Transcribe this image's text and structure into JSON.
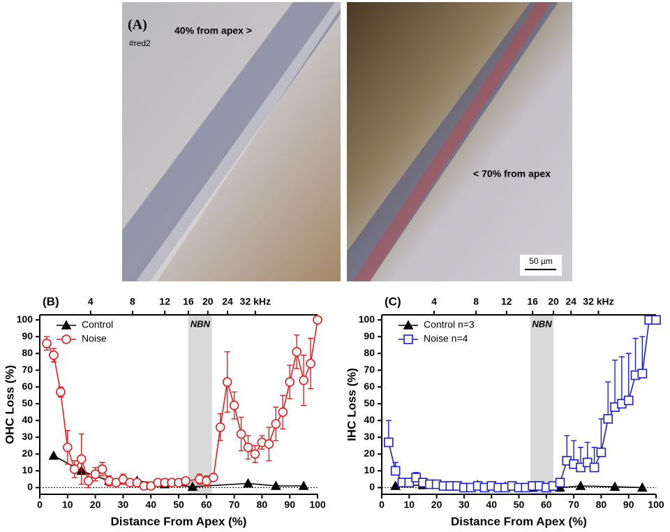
{
  "panel_a": {
    "label": "(A)",
    "annotations": [
      "40% from apex >",
      "#red2",
      "< 70% from apex"
    ],
    "scale_bar": "50 µm"
  },
  "chart_data": [
    {
      "type": "line",
      "panel_label": "(B)",
      "xlabel": "Distance From Apex (%)",
      "ylabel": "OHC Loss (%)",
      "xlim": [
        0,
        100
      ],
      "ylim": [
        -4,
        103
      ],
      "xticks": [
        0,
        10,
        20,
        30,
        40,
        50,
        60,
        70,
        80,
        90,
        100
      ],
      "yticks": [
        0,
        10,
        20,
        30,
        40,
        50,
        60,
        70,
        80,
        90,
        100
      ],
      "x2lim": [
        0,
        100
      ],
      "x2ticks": [
        {
          "value": 18.3,
          "label": "4"
        },
        {
          "value": 33.4,
          "label": "8"
        },
        {
          "value": 45,
          "label": "12"
        },
        {
          "value": 53.5,
          "label": "16"
        },
        {
          "value": 60.5,
          "label": "20"
        },
        {
          "value": 67.6,
          "label": "24"
        },
        {
          "value": 77.6,
          "label": "32 kHz"
        }
      ],
      "shaded_region": {
        "xmin": 53.5,
        "xmax": 62,
        "label": "NBN"
      },
      "reference_line": 0,
      "legend": "upper left",
      "series": [
        {
          "name": "Control",
          "color": "#000000",
          "marker": "triangle",
          "filled": true,
          "x": [
            5,
            15,
            25,
            35,
            45,
            55,
            75,
            85,
            95
          ],
          "values": [
            19,
            10,
            4,
            4,
            2,
            0.5,
            2.5,
            1,
            1
          ]
        },
        {
          "name": "Noise",
          "color": "#e8191b",
          "marker": "circle",
          "filled": false,
          "error_direction": "both",
          "x": [
            2.5,
            5,
            7.5,
            10,
            12.5,
            15,
            17.5,
            20,
            22.5,
            25,
            27.5,
            30,
            32.5,
            35,
            37.5,
            40,
            42.5,
            45,
            47.5,
            50,
            52.5,
            57.5,
            60,
            62.5,
            65,
            67.5,
            70,
            72.5,
            75,
            77.5,
            80,
            82.5,
            85,
            87.5,
            90,
            92.5,
            95,
            97.5,
            100
          ],
          "values": [
            86,
            79,
            57,
            24,
            11,
            17,
            4,
            8,
            11,
            4,
            3,
            5,
            3,
            3,
            1,
            1,
            3,
            3,
            3,
            3,
            4,
            5,
            4,
            6,
            36,
            63,
            49,
            32,
            24,
            20,
            27,
            26,
            38,
            45,
            63,
            81,
            64,
            74,
            100
          ],
          "errors": [
            4,
            4,
            3,
            10,
            5,
            15,
            4,
            4,
            4,
            3,
            2,
            3,
            2,
            2,
            1,
            1,
            1,
            1,
            1,
            1,
            1,
            3,
            3,
            2,
            8,
            18,
            8,
            10,
            7,
            5,
            4,
            10,
            10,
            10,
            10,
            10,
            15,
            15,
            0
          ]
        }
      ]
    },
    {
      "type": "line",
      "panel_label": "(C)",
      "xlabel": "Distance From Apex (%)",
      "ylabel": "IHC Loss (%)",
      "xlim": [
        0,
        100
      ],
      "ylim": [
        -4,
        103
      ],
      "xticks": [
        0,
        10,
        20,
        30,
        40,
        50,
        60,
        70,
        80,
        90,
        100
      ],
      "yticks": [
        0,
        10,
        20,
        30,
        40,
        50,
        60,
        70,
        80,
        90,
        100
      ],
      "x2lim": [
        0,
        100
      ],
      "x2ticks": [
        {
          "value": 19.1,
          "label": "4"
        },
        {
          "value": 34.4,
          "label": "8"
        },
        {
          "value": 45.5,
          "label": "12"
        },
        {
          "value": 55,
          "label": "16"
        },
        {
          "value": 62.6,
          "label": "20"
        },
        {
          "value": 69,
          "label": "24"
        },
        {
          "value": 79,
          "label": "32 kHz"
        }
      ],
      "shaded_region": {
        "xmin": 54.2,
        "xmax": 62.6,
        "label": "NBN"
      },
      "reference_line": 0,
      "legend": "upper left",
      "series": [
        {
          "name": "Control n=3",
          "color": "#000000",
          "marker": "triangle",
          "filled": true,
          "x": [
            5,
            15,
            25,
            35,
            45,
            55,
            65,
            72.5,
            85,
            95
          ],
          "values": [
            1,
            1.5,
            1,
            1.5,
            0.5,
            0,
            0,
            1,
            0.5,
            0
          ]
        },
        {
          "name": "Noise n=4",
          "color": "#1a1adb",
          "marker": "square",
          "filled": false,
          "error_direction": "up",
          "x": [
            2.5,
            5,
            7.5,
            10,
            12.5,
            15,
            17.5,
            20,
            22.5,
            25,
            27.5,
            30,
            32.5,
            35,
            37.5,
            40,
            42.5,
            45,
            47.5,
            50,
            52.5,
            55,
            57.5,
            60,
            62.5,
            65,
            67.5,
            70,
            72.5,
            75,
            77.5,
            80,
            82.5,
            85,
            87.5,
            90,
            92.5,
            95,
            97.5,
            100
          ],
          "values": [
            27,
            10,
            3,
            3,
            6,
            3,
            2,
            2,
            1,
            1,
            1,
            0,
            0,
            1,
            0,
            1,
            0,
            0,
            1,
            0,
            0,
            1,
            1,
            0,
            1,
            3,
            16,
            14,
            12,
            15,
            12,
            21,
            41,
            48,
            50,
            52,
            67,
            68,
            100,
            100
          ],
          "errors": [
            13,
            5,
            2,
            2,
            3,
            1,
            1,
            1,
            1,
            1,
            1,
            1,
            1,
            1,
            1,
            1,
            1,
            1,
            1,
            1,
            1,
            1,
            1,
            1,
            1,
            2,
            15,
            14,
            12,
            12,
            12,
            20,
            22,
            28,
            28,
            28,
            22,
            22,
            0,
            0
          ]
        }
      ]
    }
  ]
}
